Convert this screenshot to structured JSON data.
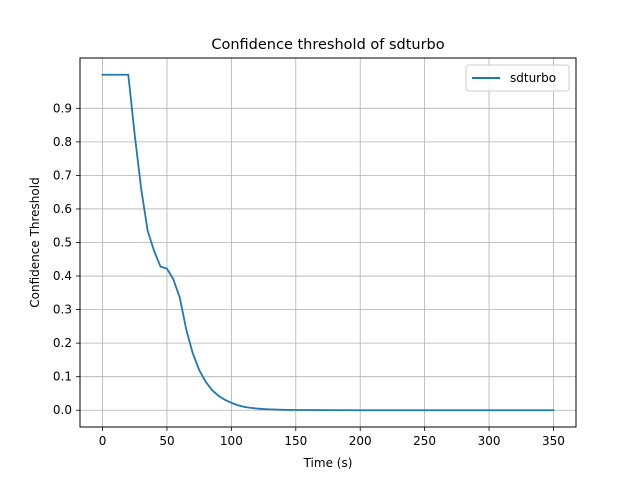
{
  "chart_data": {
    "type": "line",
    "title": "Confidence threshold of sdturbo",
    "xlabel": "Time (s)",
    "ylabel": "Confidence Threshold",
    "xlim": [
      -17.5,
      367.5
    ],
    "ylim": [
      -0.05,
      1.05
    ],
    "xticks": [
      0,
      50,
      100,
      150,
      200,
      250,
      300,
      350
    ],
    "xtick_labels": [
      "0",
      "50",
      "100",
      "150",
      "200",
      "250",
      "300",
      "350"
    ],
    "yticks": [
      0.0,
      0.1,
      0.2,
      0.3,
      0.4,
      0.5,
      0.6,
      0.7,
      0.8,
      0.9
    ],
    "ytick_labels": [
      "0.0",
      "0.1",
      "0.2",
      "0.3",
      "0.4",
      "0.5",
      "0.6",
      "0.7",
      "0.8",
      "0.9"
    ],
    "grid": true,
    "legend_position": "top-right",
    "series": [
      {
        "name": "sdturbo",
        "color": "#1f77b4",
        "x": [
          0,
          5,
          10,
          15,
          20,
          25,
          30,
          35,
          40,
          45,
          50,
          55,
          60,
          65,
          70,
          75,
          80,
          85,
          90,
          95,
          100,
          105,
          110,
          115,
          120,
          125,
          130,
          140,
          150,
          175,
          200,
          250,
          300,
          350
        ],
        "y": [
          1.0,
          1.0,
          1.0,
          1.0,
          1.0,
          0.82,
          0.66,
          0.535,
          0.475,
          0.428,
          0.422,
          0.39,
          0.335,
          0.24,
          0.17,
          0.12,
          0.085,
          0.06,
          0.043,
          0.031,
          0.022,
          0.015,
          0.01,
          0.007,
          0.005,
          0.0035,
          0.0025,
          0.0012,
          0.0006,
          0.0002,
          0.0,
          0.0,
          0.0,
          0.0
        ]
      }
    ]
  }
}
